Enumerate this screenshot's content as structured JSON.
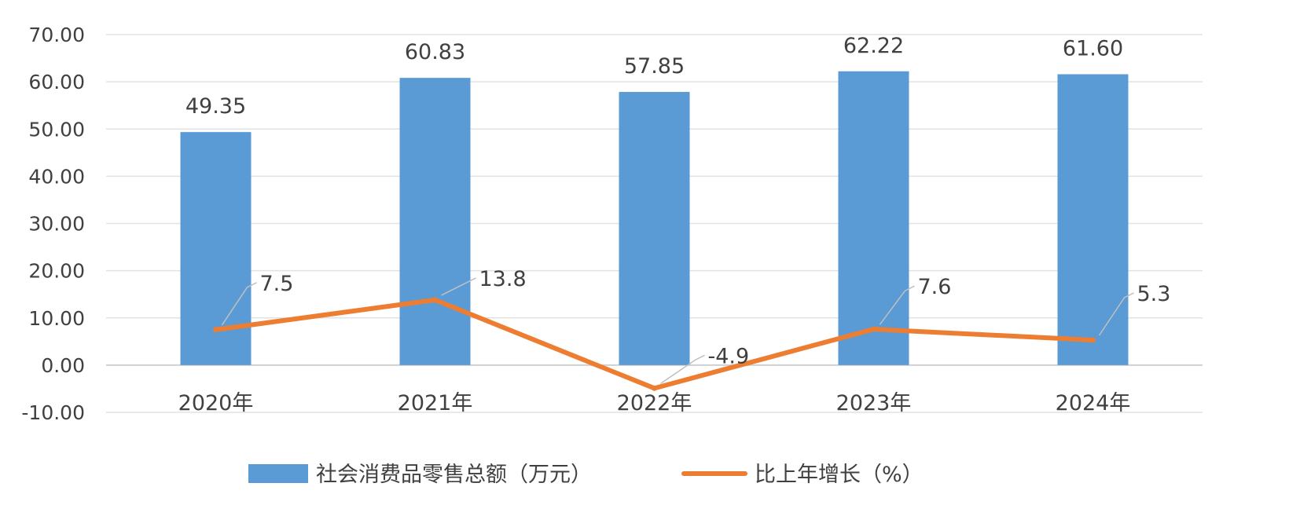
{
  "chart_data": {
    "type": "bar",
    "categories": [
      "2020年",
      "2021年",
      "2022年",
      "2023年",
      "2024年"
    ],
    "series": [
      {
        "name": "社会消费品零售总额（万元）",
        "type": "bar",
        "color": "#5b9bd5",
        "values": [
          49.35,
          60.83,
          57.85,
          62.22,
          61.6
        ],
        "labels": [
          "49.35",
          "60.83",
          "57.85",
          "62.22",
          "61.60"
        ]
      },
      {
        "name": "比上年增长（%）",
        "type": "line",
        "color": "#ed7d31",
        "values": [
          7.5,
          13.8,
          -4.9,
          7.6,
          5.3
        ],
        "labels": [
          "7.5",
          "13.8",
          "-4.9",
          "7.6",
          "5.3"
        ]
      }
    ],
    "yticks": [
      "-10.00",
      "0.00",
      "10.00",
      "20.00",
      "30.00",
      "40.00",
      "50.00",
      "60.00",
      "70.00"
    ],
    "ylim": [
      -10,
      70
    ],
    "grid": true,
    "legend_position": "bottom"
  }
}
